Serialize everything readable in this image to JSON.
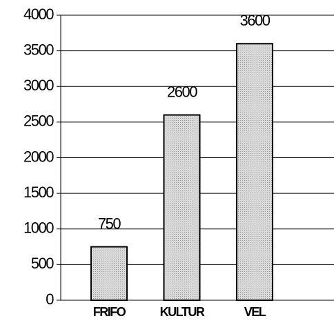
{
  "chart_data": {
    "type": "bar",
    "categories": [
      "FRIFO",
      "KULTUR",
      "VEL"
    ],
    "values": [
      750,
      2600,
      3600
    ],
    "color": "#c4c4c4",
    "ylim": [
      0,
      4000
    ],
    "yticks": [
      0,
      500,
      1000,
      1500,
      2000,
      2500,
      3000,
      3500,
      4000
    ],
    "grid": true,
    "data_labels": true
  }
}
